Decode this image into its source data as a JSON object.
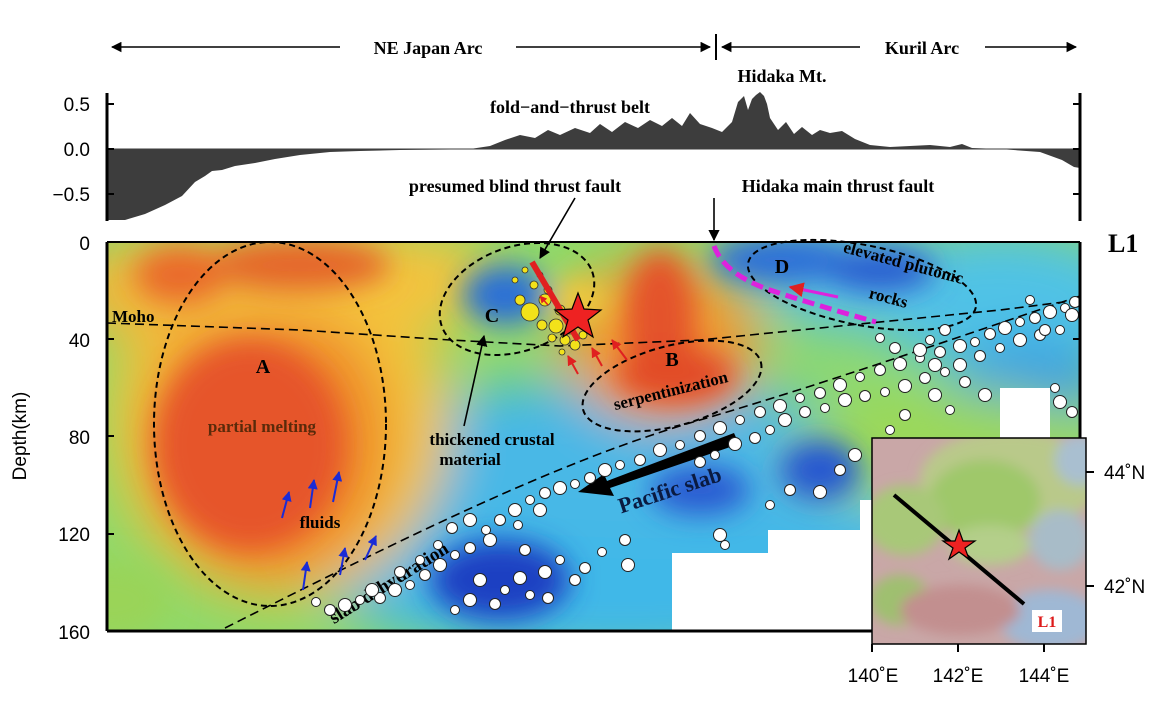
{
  "header": {
    "ne_japan_arc": "NE Japan Arc",
    "kuril_arc": "Kuril Arc",
    "hidaka_mt": "Hidaka Mt."
  },
  "topography": {
    "ticks": [
      "0.5",
      "0.0",
      "−0.5"
    ],
    "fold_thrust_label": "fold−and−thrust belt",
    "blind_fault_label": "presumed blind thrust fault",
    "hidaka_fault_label": "Hidaka main thrust fault"
  },
  "section": {
    "profile_label": "L1",
    "ylabel": "Depth(km)",
    "depth_ticks": [
      "0",
      "40",
      "80",
      "120",
      "160"
    ],
    "moho_label": "Moho",
    "region_A": "A",
    "region_B": "B",
    "region_C": "C",
    "region_D": "D",
    "partial_melting": "partial melting",
    "fluids": "fluids",
    "serpentinization": "serpentinization",
    "thickened_line1": "thickened crustal",
    "thickened_line2": "material",
    "elevated_line1": "elevated plutonic",
    "elevated_line2": "rocks",
    "pacific_slab": "Pacific slab",
    "slab_dehydration": "slab dehydration"
  },
  "inset": {
    "lat_labels": [
      "44˚N",
      "42˚N"
    ],
    "lon_labels": [
      "140˚E",
      "142˚E",
      "144˚E"
    ],
    "profile_tag": "L1"
  },
  "colors": {
    "topo_fill": "#3d3d3d",
    "fault_red": "#e02020",
    "hidaka_magenta": "#dd22dd",
    "fluid_arrow": "#1a2bd6",
    "star": "#ee2222",
    "event_yellow": "#f2e21a"
  }
}
